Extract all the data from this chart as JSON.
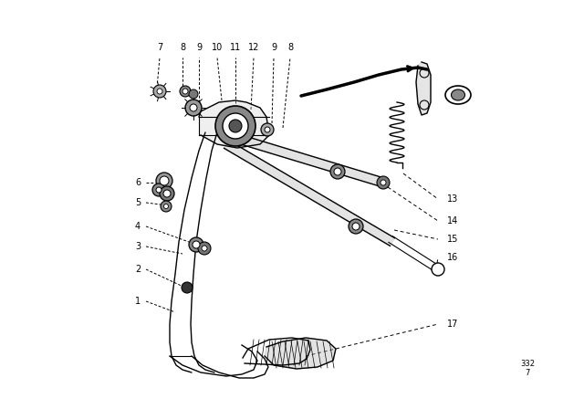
{
  "bg_color": "#ffffff",
  "line_color": "#000000",
  "fig_width": 6.4,
  "fig_height": 4.48,
  "dpi": 100
}
